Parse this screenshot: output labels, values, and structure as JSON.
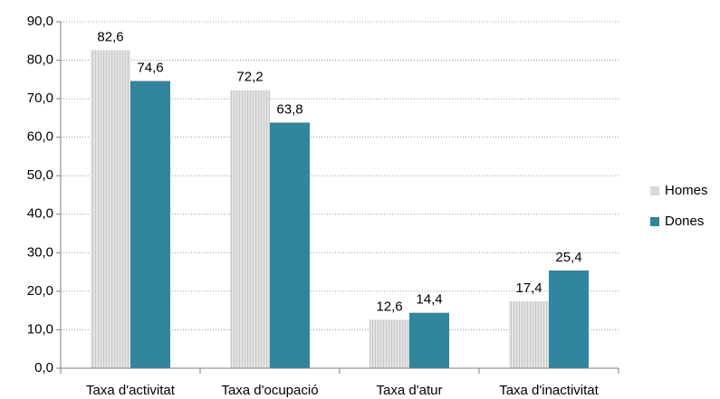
{
  "chart_data": {
    "type": "bar",
    "categories": [
      "Taxa d'activitat",
      "Taxa d'ocupació",
      "Taxa d'atur",
      "Taxa d'inactivitat"
    ],
    "series": [
      {
        "name": "Homes",
        "color": "#d9d9d9",
        "values": [
          82.6,
          72.2,
          12.6,
          17.4
        ],
        "value_labels": [
          "82,6",
          "72,2",
          "12,6",
          "17,4"
        ]
      },
      {
        "name": "Dones",
        "color": "#31859c",
        "values": [
          74.6,
          63.8,
          14.4,
          25.4
        ],
        "value_labels": [
          "74,6",
          "63,8",
          "14,4",
          "25,4"
        ]
      }
    ],
    "ylim": [
      0,
      90
    ],
    "yticks": [
      {
        "value": 0,
        "label": "0,0"
      },
      {
        "value": 10,
        "label": "10,0"
      },
      {
        "value": 20,
        "label": "20,0"
      },
      {
        "value": 30,
        "label": "30,0"
      },
      {
        "value": 40,
        "label": "40,0"
      },
      {
        "value": 50,
        "label": "50,0"
      },
      {
        "value": 60,
        "label": "60,0"
      },
      {
        "value": 70,
        "label": "70,0"
      },
      {
        "value": 80,
        "label": "80,0"
      },
      {
        "value": 90,
        "label": "90,0"
      }
    ],
    "grid": true,
    "legend": "right"
  }
}
